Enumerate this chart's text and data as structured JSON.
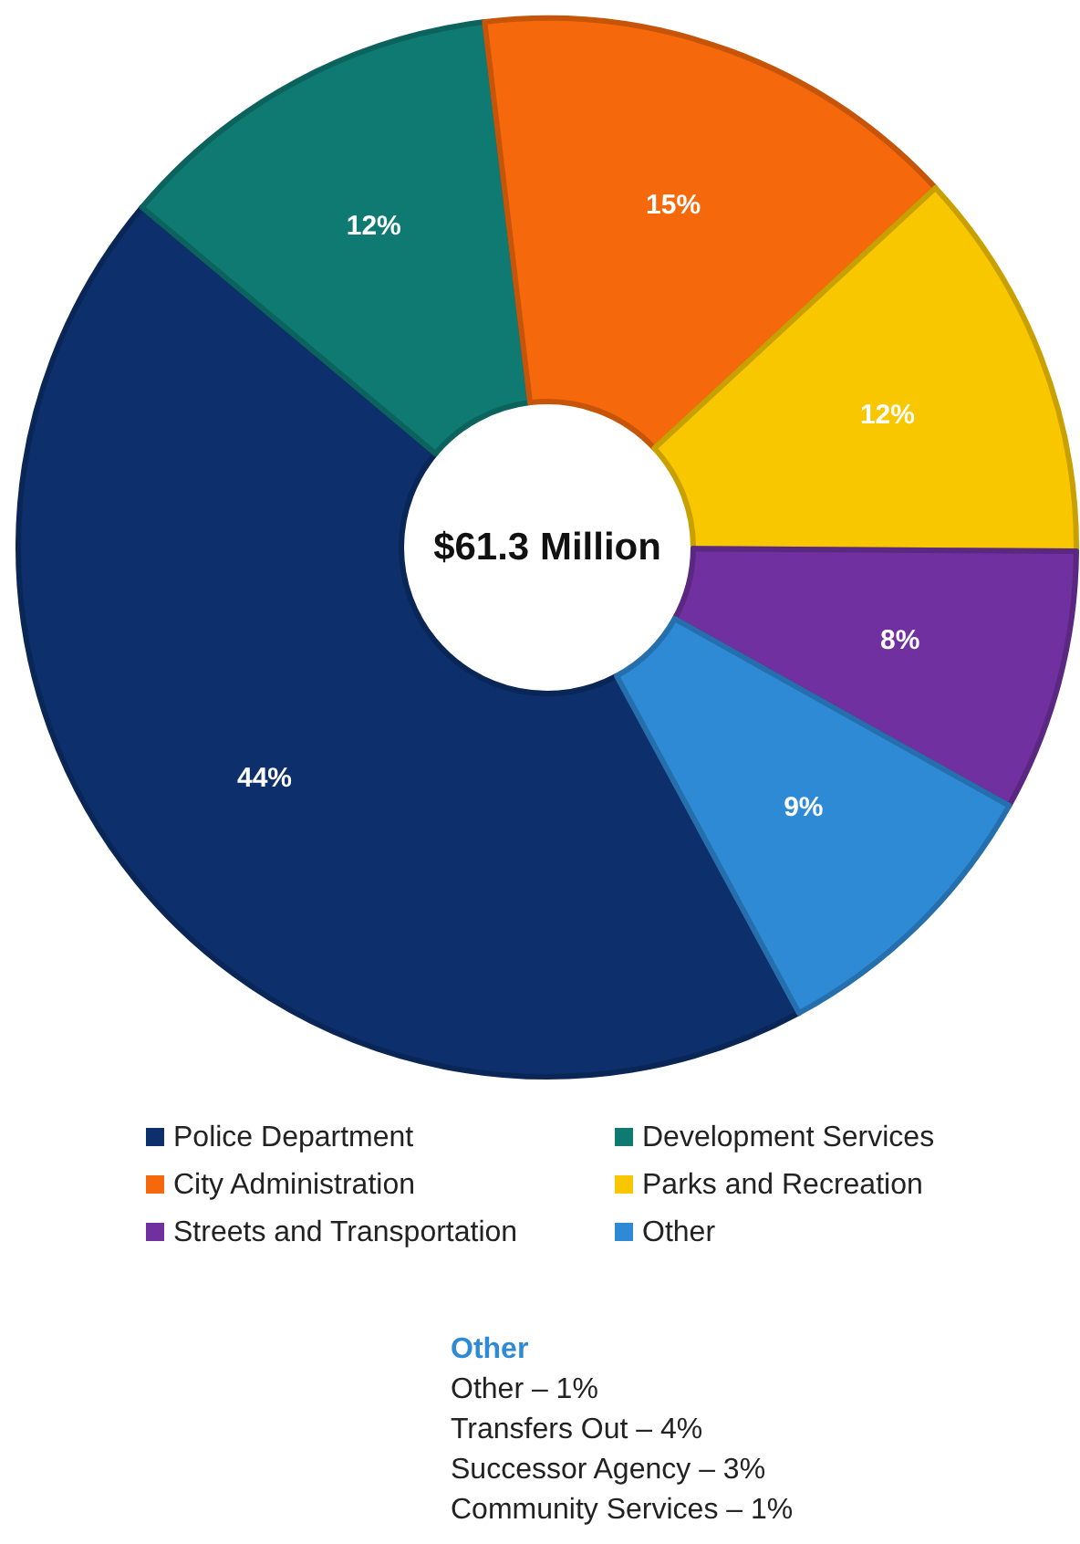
{
  "chart_data": {
    "type": "donut",
    "categories": [
      "Police Department",
      "Development Services",
      "City Administration",
      "Parks and Recreation",
      "Streets and Transportation",
      "Other"
    ],
    "values": [
      44,
      12,
      15,
      12,
      8,
      9
    ],
    "colors": [
      "#0d2f6b",
      "#0f7a72",
      "#f5690c",
      "#f8c700",
      "#7030a0",
      "#2f8ad6"
    ],
    "value_labels": [
      "44%",
      "12%",
      "15%",
      "12%",
      "8%",
      "9%"
    ],
    "legend": "bottom",
    "annotations": [
      "$61.3 Million",
      "Other",
      "Other – 1%",
      "Transfers Out – 4%",
      "Successor Agency – 3%",
      "Community Services – 1%"
    ]
  }
}
